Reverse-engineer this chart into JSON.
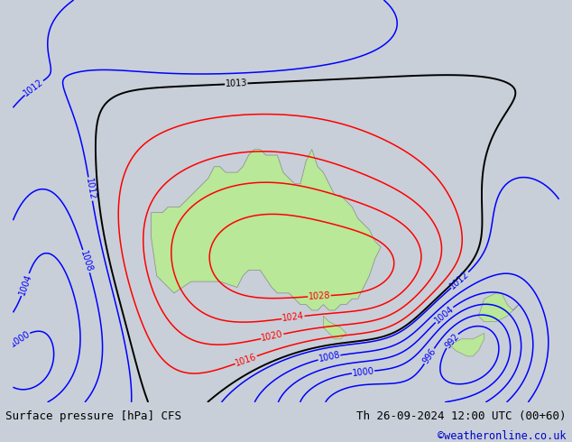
{
  "title_left": "Surface pressure [hPa] CFS",
  "title_right": "Th 26-09-2024 12:00 UTC (00+60)",
  "credit": "©weatheronline.co.uk",
  "bg_color": "#c8cfd8",
  "land_color": "#b8e898",
  "land_edge_color": "#888888",
  "fig_width": 6.34,
  "fig_height": 4.9,
  "dpi": 100,
  "title_fontsize": 9.0,
  "credit_color": "#0000cc",
  "map_lon_min": 90,
  "map_lon_max": 185,
  "map_lat_min": -55,
  "map_lat_max": 15,
  "red_levels": [
    1016,
    1020,
    1024,
    1028
  ],
  "black_levels": [
    1013
  ],
  "blue_levels": [
    992,
    996,
    1000,
    1004,
    1008,
    1012
  ],
  "gaussians": [
    {
      "lon": 133,
      "lat": -30,
      "amp": 17,
      "slon": 18,
      "slat": 14
    },
    {
      "lon": 158,
      "lat": -33,
      "amp": 9,
      "slon": 11,
      "slat": 9
    },
    {
      "lon": 150,
      "lat": -55,
      "amp": -22,
      "slon": 13,
      "slat": 8
    },
    {
      "lon": 100,
      "lat": -42,
      "amp": -8,
      "slon": 9,
      "slat": 12
    },
    {
      "lon": 90,
      "lat": -50,
      "amp": -10,
      "slon": 6,
      "slat": 6
    },
    {
      "lon": 170,
      "lat": -45,
      "amp": -24,
      "slon": 7,
      "slat": 7
    },
    {
      "lon": 128,
      "lat": 10,
      "amp": -4,
      "slon": 18,
      "slat": 7
    },
    {
      "lon": 96,
      "lat": -28,
      "amp": -7,
      "slon": 7,
      "slat": 14
    },
    {
      "lon": 175,
      "lat": -30,
      "amp": -5,
      "slon": 8,
      "slat": 10
    }
  ]
}
